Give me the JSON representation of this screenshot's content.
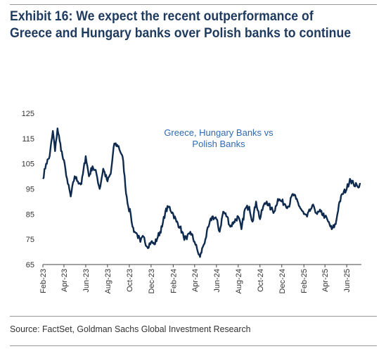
{
  "title": "Exhibit 16: We expect the recent outperformance of Greece and Hungary banks over Polish banks to continue",
  "source": "Source: FactSet, Goldman Sachs Global Investment Research",
  "colors": {
    "line": "#0e2a4f",
    "annotation": "#2e6ab1",
    "title": "#1e3a5f"
  },
  "chart_data": {
    "type": "line",
    "title": "",
    "xlabel": "",
    "ylabel": "",
    "ylim": [
      65,
      125
    ],
    "yticks": [
      65,
      75,
      85,
      95,
      105,
      115,
      125
    ],
    "xticks": [
      "Feb-23",
      "Apr-23",
      "Jun-23",
      "Aug-23",
      "Oct-23",
      "Dec-23",
      "Feb-24",
      "Apr-24",
      "Jun-24",
      "Aug-24",
      "Oct-24",
      "Dec-24",
      "Feb-25",
      "Apr-25",
      "Jun-25"
    ],
    "annotation": "Greece, Hungary Banks vs Polish Banks",
    "annotation_lines": [
      "Greece, Hungary Banks vs",
      "Polish Banks"
    ],
    "grid": false,
    "series": [
      {
        "name": "Greece, Hungary Banks vs Polish Banks",
        "x": [
          "2023-02-01",
          "2023-02-10",
          "2023-02-20",
          "2023-03-01",
          "2023-03-07",
          "2023-03-14",
          "2023-03-20",
          "2023-03-28",
          "2023-04-05",
          "2023-04-12",
          "2023-04-20",
          "2023-05-01",
          "2023-05-10",
          "2023-05-20",
          "2023-06-01",
          "2023-06-10",
          "2023-06-20",
          "2023-07-01",
          "2023-07-10",
          "2023-07-20",
          "2023-08-01",
          "2023-08-10",
          "2023-08-20",
          "2023-09-01",
          "2023-09-08",
          "2023-09-14",
          "2023-09-20",
          "2023-09-28",
          "2023-10-05",
          "2023-10-10",
          "2023-10-16",
          "2023-10-23",
          "2023-11-01",
          "2023-11-10",
          "2023-11-20",
          "2023-12-01",
          "2023-12-10",
          "2023-12-20",
          "2024-01-01",
          "2024-01-10",
          "2024-01-20",
          "2024-02-01",
          "2024-02-10",
          "2024-02-20",
          "2024-03-01",
          "2024-03-10",
          "2024-03-20",
          "2024-04-01",
          "2024-04-10",
          "2024-04-16",
          "2024-04-24",
          "2024-05-01",
          "2024-05-10",
          "2024-05-20",
          "2024-06-01",
          "2024-06-10",
          "2024-06-20",
          "2024-07-01",
          "2024-07-10",
          "2024-07-20",
          "2024-08-01",
          "2024-08-10",
          "2024-08-20",
          "2024-09-01",
          "2024-09-10",
          "2024-09-20",
          "2024-10-01",
          "2024-10-10",
          "2024-10-20",
          "2024-11-01",
          "2024-11-10",
          "2024-11-20",
          "2024-12-01",
          "2024-12-10",
          "2024-12-20",
          "2025-01-01",
          "2025-01-10",
          "2025-01-20",
          "2025-02-01",
          "2025-02-10",
          "2025-02-20",
          "2025-03-01",
          "2025-03-10",
          "2025-03-20",
          "2025-04-01",
          "2025-04-10",
          "2025-04-20",
          "2025-05-01",
          "2025-05-10",
          "2025-05-20",
          "2025-06-01",
          "2025-06-10",
          "2025-06-20",
          "2025-07-01",
          "2025-07-10"
        ],
        "values": [
          99,
          105,
          108,
          118,
          110,
          119,
          114,
          108,
          103,
          97,
          92,
          100,
          98,
          97,
          108,
          100,
          104,
          101,
          95,
          103,
          98,
          101,
          113,
          112,
          109,
          106,
          96,
          88,
          85,
          80,
          78,
          77,
          74,
          76,
          72,
          74,
          73,
          76,
          80,
          86,
          88,
          85,
          82,
          80,
          76,
          75,
          78,
          74,
          70,
          68,
          72,
          75,
          80,
          84,
          83,
          78,
          86,
          84,
          80,
          82,
          84,
          79,
          87,
          88,
          82,
          90,
          83,
          88,
          90,
          87,
          86,
          91,
          90,
          89,
          88,
          93,
          91,
          88,
          85,
          84,
          87,
          88,
          85,
          86,
          84,
          82,
          79,
          81,
          89,
          93,
          95,
          99,
          97,
          96,
          97
        ]
      }
    ]
  }
}
